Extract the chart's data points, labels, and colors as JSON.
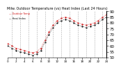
{
  "title": "Milw. Outdoor Temperature (vs) Heat Index (Last 24 Hours)",
  "hours": [
    0,
    1,
    2,
    3,
    4,
    5,
    6,
    7,
    8,
    9,
    10,
    11,
    12,
    13,
    14,
    15,
    16,
    17,
    18,
    19,
    20,
    21,
    22,
    23,
    24
  ],
  "temp": [
    62,
    60,
    58,
    57,
    56,
    55,
    54,
    55,
    58,
    65,
    72,
    78,
    82,
    84,
    85,
    84,
    82,
    80,
    79,
    78,
    79,
    80,
    82,
    85,
    87
  ],
  "heat_index": [
    60,
    58,
    56,
    55,
    54,
    53,
    52,
    53,
    56,
    63,
    70,
    76,
    80,
    82,
    83,
    82,
    80,
    78,
    77,
    76,
    77,
    78,
    80,
    83,
    85
  ],
  "temp_color": "#cc0000",
  "heat_index_color": "#000000",
  "bg_color": "#ffffff",
  "ylim": [
    50,
    90
  ],
  "yticks": [
    50,
    55,
    60,
    65,
    70,
    75,
    80,
    85,
    90
  ],
  "grid_positions": [
    1,
    3,
    5,
    7,
    9,
    11,
    13,
    15,
    17,
    19,
    21,
    23
  ],
  "ylabel_fontsize": 4,
  "title_fontsize": 3.5
}
